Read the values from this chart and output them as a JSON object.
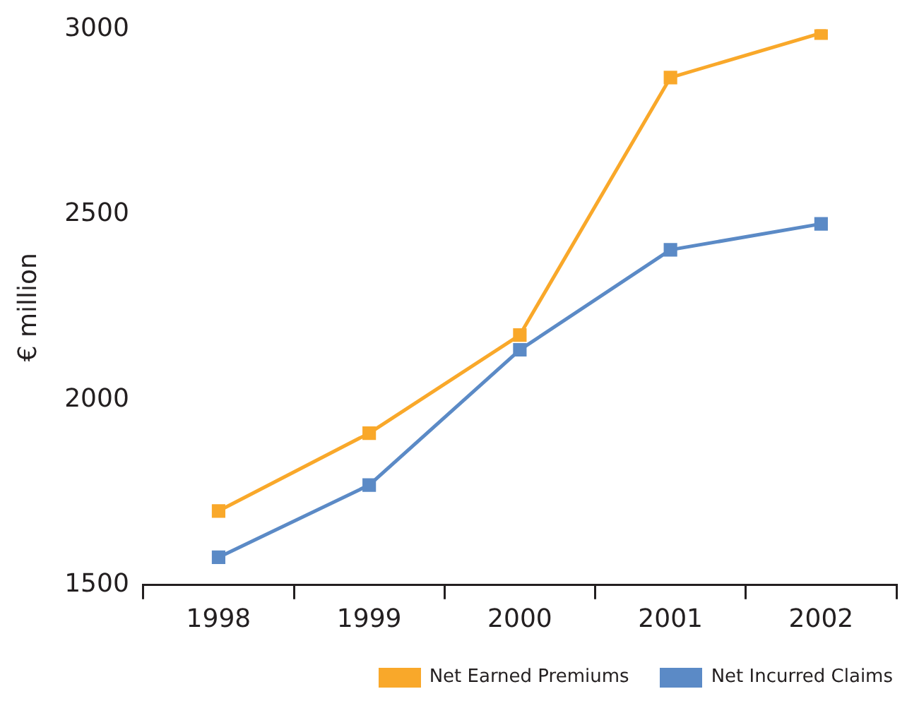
{
  "chart_data": {
    "type": "line",
    "ylabel": "€ million",
    "categories": [
      "1998",
      "1999",
      "2000",
      "2001",
      "2002"
    ],
    "series": [
      {
        "name": "Net Earned Premiums",
        "color": "#f9a82a",
        "values": [
          1700,
          1910,
          2175,
          2870,
          2990
        ]
      },
      {
        "name": "Net Incurred Claims",
        "color": "#5b8ac6",
        "values": [
          1575,
          1770,
          2135,
          2405,
          2475
        ]
      }
    ],
    "ylim": [
      1500,
      3000
    ],
    "yticks": [
      1500,
      2000,
      2500,
      3000
    ],
    "grid": false,
    "legend": "bottom",
    "marker": "square",
    "line_style": "solid"
  }
}
